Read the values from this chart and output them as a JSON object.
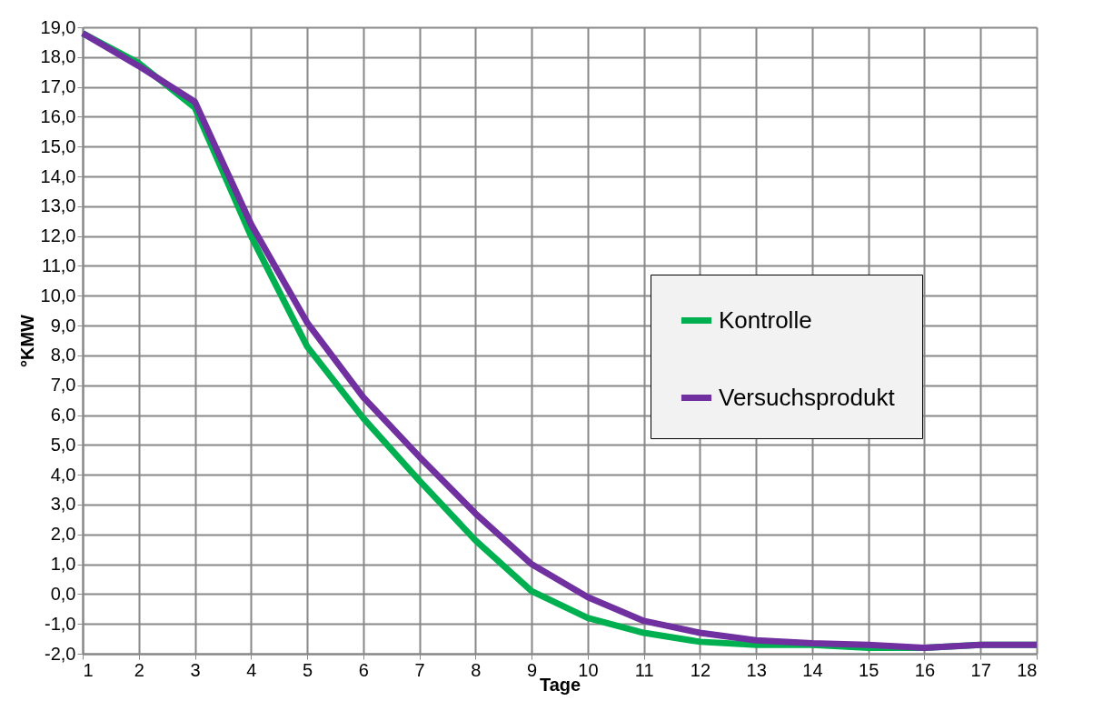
{
  "chart_data": {
    "type": "line",
    "xlabel": "Tage",
    "ylabel": "°KMW",
    "x": [
      1,
      2,
      3,
      4,
      5,
      6,
      7,
      8,
      9,
      10,
      11,
      12,
      13,
      14,
      15,
      16,
      17,
      18
    ],
    "xlim": [
      1,
      18
    ],
    "xticks": [
      1,
      2,
      3,
      4,
      5,
      6,
      7,
      8,
      9,
      10,
      11,
      12,
      13,
      14,
      15,
      16,
      17,
      18
    ],
    "ylim": [
      -2,
      19
    ],
    "yticks": [
      {
        "value": -2,
        "label": "-2,0"
      },
      {
        "value": -1,
        "label": "-1,0"
      },
      {
        "value": 0,
        "label": "0,0"
      },
      {
        "value": 1,
        "label": "1,0"
      },
      {
        "value": 2,
        "label": "2,0"
      },
      {
        "value": 3,
        "label": "3,0"
      },
      {
        "value": 4,
        "label": "4,0"
      },
      {
        "value": 5,
        "label": "5,0"
      },
      {
        "value": 6,
        "label": "6,0"
      },
      {
        "value": 7,
        "label": "7,0"
      },
      {
        "value": 8,
        "label": "8,0"
      },
      {
        "value": 9,
        "label": "9,0"
      },
      {
        "value": 10,
        "label": "10,0"
      },
      {
        "value": 11,
        "label": "11,0"
      },
      {
        "value": 12,
        "label": "12,0"
      },
      {
        "value": 13,
        "label": "13,0"
      },
      {
        "value": 14,
        "label": "14,0"
      },
      {
        "value": 15,
        "label": "15,0"
      },
      {
        "value": 16,
        "label": "16,0"
      },
      {
        "value": 17,
        "label": "17,0"
      },
      {
        "value": 18,
        "label": "18,0"
      },
      {
        "value": 19,
        "label": "19,0"
      }
    ],
    "grid": true,
    "legend": "right",
    "marker": "none",
    "line_style": "solid",
    "series": [
      {
        "name": "Kontrolle",
        "color": "#00b050",
        "values": [
          18.8,
          17.8,
          16.3,
          12.0,
          8.3,
          5.9,
          3.8,
          1.8,
          0.1,
          -0.8,
          -1.3,
          -1.6,
          -1.7,
          -1.7,
          -1.8,
          -1.8,
          -1.7,
          -1.7
        ]
      },
      {
        "name": "Versuchsprodukt",
        "color": "#7030a0",
        "values": [
          18.8,
          17.7,
          16.5,
          12.4,
          9.1,
          6.6,
          4.6,
          2.7,
          1.0,
          -0.1,
          -0.9,
          -1.3,
          -1.55,
          -1.65,
          -1.7,
          -1.8,
          -1.7,
          -1.7
        ]
      }
    ]
  }
}
